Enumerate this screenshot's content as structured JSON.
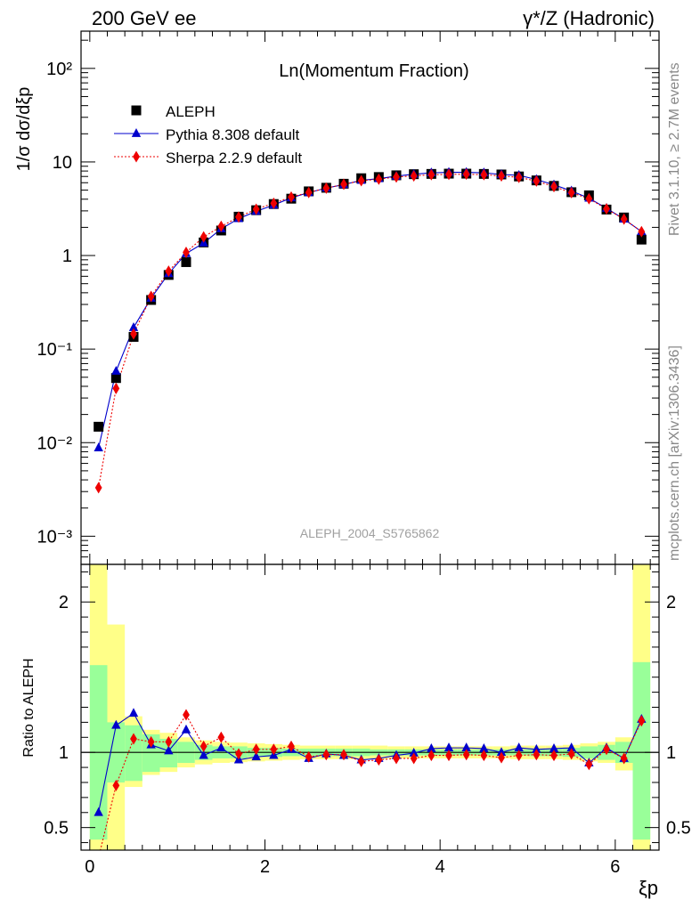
{
  "header": {
    "left": "200 GeV ee",
    "right": "γ*/Z (Hadronic)"
  },
  "side_labels": {
    "rivet": "Rivet 3.1.10, ≥ 2.7M events",
    "mcplots": "mcplots.cern.ch [arXiv:1306.3436]"
  },
  "chart_data": {
    "type": "scatter",
    "title": "Ln(Momentum Fraction)",
    "watermark": "ALEPH_2004_S5765862",
    "xlabel": "ξp",
    "ylabel": "1/σ dσ/dξp",
    "ratio_ylabel": "Ratio to ALEPH",
    "xlim": [
      -0.1,
      6.5
    ],
    "ylim": [
      0.0005,
      250
    ],
    "ratio_ylim": [
      0.35,
      2.25
    ],
    "y_scale": "log",
    "x_ticks": [
      0,
      2,
      4,
      6
    ],
    "y_ticks": [
      0.001,
      0.01,
      0.1,
      1,
      10,
      100
    ],
    "y_tick_labels": [
      "10⁻³",
      "10⁻²",
      "10⁻¹",
      "1",
      "10",
      "10²"
    ],
    "ratio_ticks": [
      0.5,
      1,
      2
    ],
    "ratio_tick_labels": [
      "0.5",
      "1",
      "2"
    ],
    "legend_position": "top-left",
    "x": [
      0.1,
      0.3,
      0.5,
      0.7,
      0.9,
      1.1,
      1.3,
      1.5,
      1.7,
      1.9,
      2.1,
      2.3,
      2.5,
      2.7,
      2.9,
      3.1,
      3.3,
      3.5,
      3.7,
      3.9,
      4.1,
      4.3,
      4.5,
      4.7,
      4.9,
      5.1,
      5.3,
      5.5,
      5.7,
      5.9,
      6.1,
      6.3
    ],
    "series": [
      {
        "name": "ALEPH",
        "marker": "square",
        "color": "#000000",
        "values": [
          0.0148,
          0.049,
          0.135,
          0.335,
          0.62,
          0.85,
          1.38,
          1.85,
          2.6,
          3.05,
          3.55,
          4.05,
          4.85,
          5.3,
          5.85,
          6.7,
          6.9,
          7.2,
          7.4,
          7.45,
          7.5,
          7.5,
          7.45,
          7.35,
          7.0,
          6.35,
          5.55,
          4.75,
          4.4,
          3.1,
          2.55,
          1.48
        ]
      },
      {
        "name": "Pythia 8.308 default",
        "marker": "triangle",
        "color": "#0000cc",
        "values": [
          0.0088,
          0.058,
          0.17,
          0.35,
          0.64,
          1.05,
          1.36,
          1.93,
          2.48,
          2.97,
          3.46,
          4.14,
          4.7,
          5.26,
          5.73,
          6.36,
          6.63,
          7.06,
          7.4,
          7.65,
          7.75,
          7.75,
          7.65,
          7.35,
          7.2,
          6.5,
          5.7,
          4.9,
          4.1,
          3.2,
          2.45,
          1.8
        ]
      },
      {
        "name": "Sherpa 2.2.9 default",
        "marker": "diamond",
        "color": "#ee0000",
        "values": [
          0.0033,
          0.038,
          0.145,
          0.365,
          0.68,
          1.08,
          1.58,
          2.05,
          2.58,
          3.13,
          3.62,
          4.22,
          4.72,
          5.24,
          5.77,
          6.3,
          6.55,
          6.9,
          7.1,
          7.3,
          7.36,
          7.4,
          7.3,
          7.1,
          6.85,
          6.25,
          5.45,
          4.7,
          4.05,
          3.15,
          2.45,
          1.8
        ]
      }
    ],
    "ratio_series": [
      {
        "name": "Pythia 8.308 default",
        "values": [
          0.6,
          1.18,
          1.26,
          1.05,
          1.01,
          1.15,
          0.98,
          1.03,
          0.95,
          0.97,
          0.98,
          1.02,
          0.96,
          0.99,
          0.98,
          0.95,
          0.96,
          0.98,
          0.995,
          1.025,
          1.03,
          1.03,
          1.025,
          1.0,
          1.03,
          1.02,
          1.025,
          1.03,
          0.93,
          1.03,
          0.96,
          1.22
        ]
      },
      {
        "name": "Sherpa 2.2.9 default",
        "values": [
          0.22,
          0.78,
          1.09,
          1.07,
          1.07,
          1.25,
          1.04,
          1.1,
          0.99,
          1.02,
          1.02,
          1.04,
          0.97,
          0.985,
          0.985,
          0.94,
          0.95,
          0.96,
          0.96,
          0.98,
          0.98,
          0.985,
          0.98,
          0.965,
          0.98,
          0.985,
          0.98,
          0.99,
          0.92,
          1.02,
          0.96,
          1.21
        ]
      }
    ],
    "bands": {
      "x_edges": [
        0.0,
        0.2,
        0.4,
        0.6,
        0.8,
        1.0,
        1.2,
        1.4,
        1.6,
        1.8,
        2.0,
        2.2,
        2.4,
        2.6,
        2.8,
        3.0,
        3.2,
        3.4,
        3.6,
        3.8,
        4.0,
        4.2,
        4.4,
        4.6,
        4.8,
        5.0,
        5.2,
        5.4,
        5.6,
        5.8,
        6.0,
        6.2,
        6.4
      ],
      "stat_color": "#99ff99",
      "total_color": "#ffff88",
      "stat_lo": [
        0.42,
        0.8,
        0.81,
        0.87,
        0.9,
        0.93,
        0.95,
        0.96,
        0.96,
        0.97,
        0.97,
        0.975,
        0.975,
        0.975,
        0.975,
        0.975,
        0.98,
        0.98,
        0.98,
        0.98,
        0.98,
        0.98,
        0.98,
        0.98,
        0.98,
        0.975,
        0.975,
        0.97,
        0.96,
        0.95,
        0.93,
        0.42
      ],
      "stat_hi": [
        1.58,
        1.2,
        1.18,
        1.12,
        1.09,
        1.07,
        1.05,
        1.04,
        1.04,
        1.03,
        1.03,
        1.025,
        1.025,
        1.025,
        1.025,
        1.025,
        1.02,
        1.02,
        1.02,
        1.02,
        1.02,
        1.02,
        1.02,
        1.02,
        1.02,
        1.025,
        1.025,
        1.03,
        1.04,
        1.05,
        1.07,
        1.6
      ],
      "total_lo": [
        0.35,
        0.35,
        0.77,
        0.85,
        0.87,
        0.9,
        0.92,
        0.93,
        0.935,
        0.94,
        0.945,
        0.95,
        0.955,
        0.955,
        0.955,
        0.955,
        0.955,
        0.96,
        0.96,
        0.96,
        0.96,
        0.96,
        0.96,
        0.96,
        0.955,
        0.955,
        0.955,
        0.95,
        0.94,
        0.93,
        0.88,
        0.35
      ],
      "total_hi": [
        2.25,
        1.85,
        1.24,
        1.15,
        1.13,
        1.1,
        1.08,
        1.07,
        1.065,
        1.06,
        1.055,
        1.05,
        1.045,
        1.045,
        1.045,
        1.045,
        1.045,
        1.04,
        1.04,
        1.04,
        1.04,
        1.04,
        1.04,
        1.04,
        1.045,
        1.045,
        1.045,
        1.05,
        1.06,
        1.07,
        1.1,
        2.3
      ]
    }
  }
}
